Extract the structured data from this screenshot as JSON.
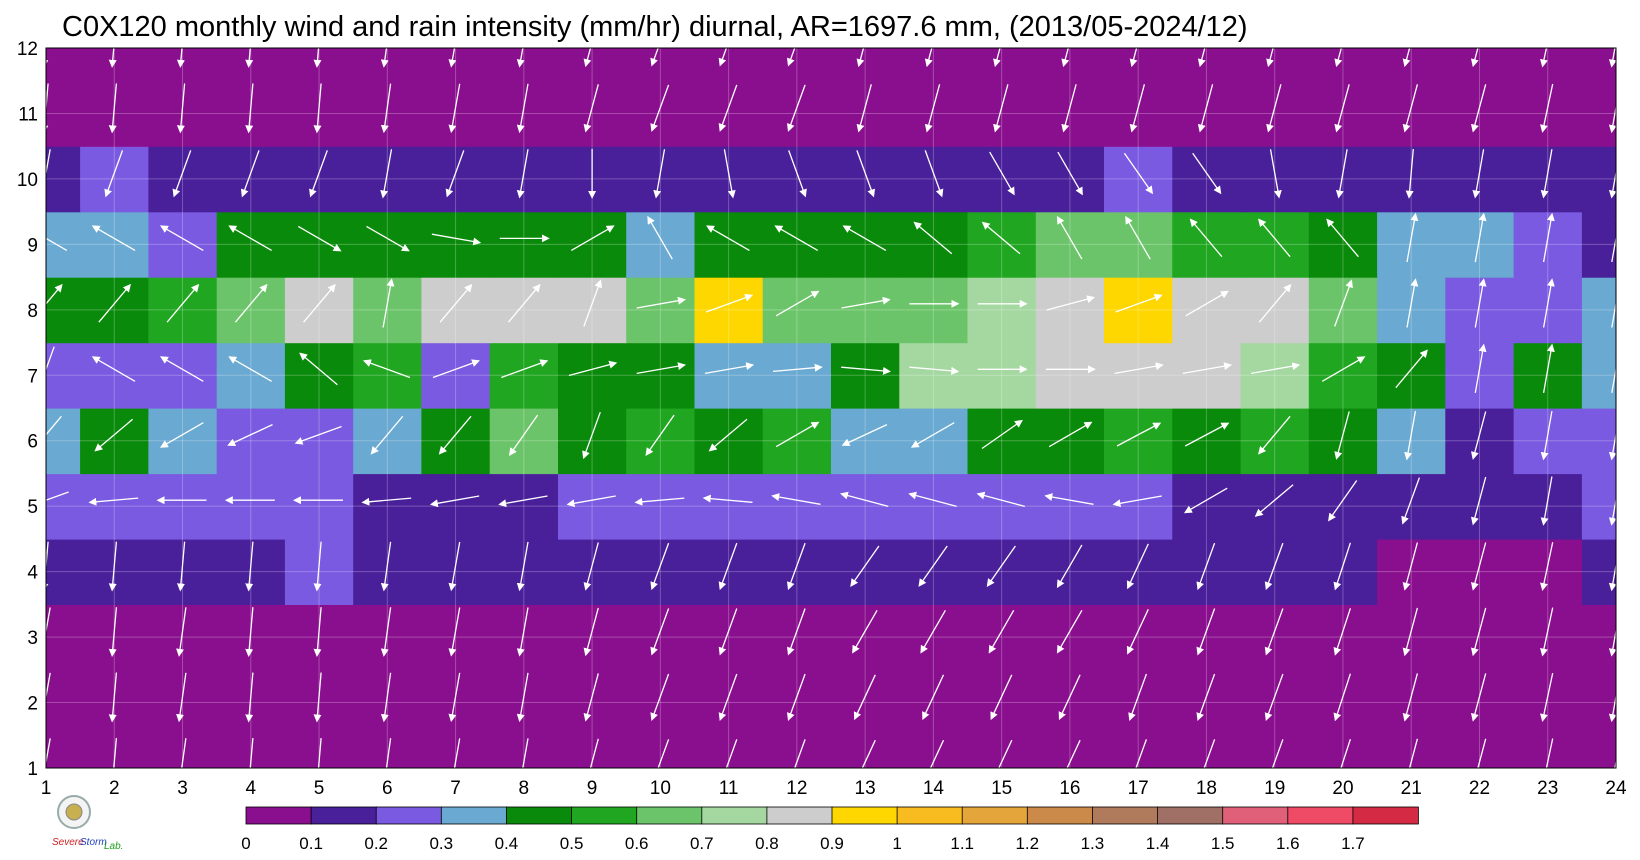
{
  "chart_data": {
    "type": "heatmap",
    "title": "C0X120 monthly wind and rain intensity (mm/hr) diurnal, AR=1697.6 mm, (2013/05-2024/12)",
    "xlabel": "",
    "ylabel": "",
    "x_ticks": [
      1,
      2,
      3,
      4,
      5,
      6,
      7,
      8,
      9,
      10,
      11,
      12,
      13,
      14,
      15,
      16,
      17,
      18,
      19,
      20,
      21,
      22,
      23,
      24
    ],
    "y_ticks": [
      1,
      2,
      3,
      4,
      5,
      6,
      7,
      8,
      9,
      10,
      11,
      12
    ],
    "xlim": [
      1,
      24
    ],
    "ylim": [
      1,
      12
    ],
    "grid": true,
    "colorbar": {
      "position": "bottom",
      "levels": [
        0,
        0.1,
        0.2,
        0.3,
        0.4,
        0.5,
        0.6,
        0.7,
        0.8,
        0.9,
        1,
        1.1,
        1.2,
        1.3,
        1.4,
        1.5,
        1.6,
        1.7
      ],
      "tick_labels": [
        "0",
        "0.1",
        "0.2",
        "0.3",
        "0.4",
        "0.5",
        "0.6",
        "0.7",
        "0.8",
        "0.9",
        "1",
        "1.1",
        "1.2",
        "1.3",
        "1.4",
        "1.5",
        "1.6",
        "1.7"
      ],
      "colors": [
        "#8a0f8e",
        "#4a1f9a",
        "#7a5ae0",
        "#6aa9d2",
        "#0a8a0a",
        "#20a620",
        "#6cc46a",
        "#a4d8a0",
        "#cdcdcd",
        "#ffd700",
        "#f8bb20",
        "#e4a63a",
        "#cc8a4a",
        "#b07a5c",
        "#a06f66",
        "#e0607a",
        "#f04b66",
        "#d42a44"
      ]
    },
    "rain_intensity": [
      [
        0.05,
        0.05,
        0.05,
        0.05,
        0.05,
        0.05,
        0.05,
        0.05,
        0.05,
        0.05,
        0.05,
        0.05,
        0.05,
        0.05,
        0.05,
        0.05,
        0.05,
        0.05,
        0.05,
        0.05,
        0.05,
        0.05,
        0.05,
        0.05
      ],
      [
        0.05,
        0.05,
        0.05,
        0.05,
        0.05,
        0.05,
        0.05,
        0.05,
        0.05,
        0.05,
        0.05,
        0.05,
        0.05,
        0.05,
        0.05,
        0.05,
        0.05,
        0.05,
        0.05,
        0.05,
        0.05,
        0.05,
        0.05,
        0.05
      ],
      [
        0.08,
        0.09,
        0.06,
        0.08,
        0.09,
        0.07,
        0.08,
        0.06,
        0.06,
        0.06,
        0.05,
        0.06,
        0.06,
        0.08,
        0.06,
        0.06,
        0.07,
        0.09,
        0.09,
        0.06,
        0.05,
        0.05,
        0.05,
        0.05
      ],
      [
        0.11,
        0.12,
        0.15,
        0.15,
        0.22,
        0.14,
        0.13,
        0.11,
        0.11,
        0.11,
        0.1,
        0.11,
        0.11,
        0.13,
        0.11,
        0.11,
        0.11,
        0.12,
        0.12,
        0.1,
        0.08,
        0.08,
        0.08,
        0.11
      ],
      [
        0.22,
        0.22,
        0.25,
        0.22,
        0.24,
        0.19,
        0.18,
        0.19,
        0.24,
        0.26,
        0.22,
        0.27,
        0.22,
        0.29,
        0.28,
        0.26,
        0.22,
        0.19,
        0.17,
        0.16,
        0.16,
        0.13,
        0.16,
        0.2
      ],
      [
        0.35,
        0.45,
        0.34,
        0.25,
        0.25,
        0.34,
        0.46,
        0.65,
        0.48,
        0.55,
        0.45,
        0.55,
        0.35,
        0.36,
        0.44,
        0.48,
        0.5,
        0.48,
        0.5,
        0.41,
        0.32,
        0.15,
        0.22,
        0.22
      ],
      [
        0.25,
        0.25,
        0.25,
        0.3,
        0.45,
        0.55,
        0.25,
        0.5,
        0.45,
        0.44,
        0.3,
        0.35,
        0.48,
        0.7,
        0.79,
        0.82,
        0.82,
        0.8,
        0.7,
        0.55,
        0.42,
        0.25,
        0.45,
        0.38
      ],
      [
        0.48,
        0.41,
        0.5,
        0.62,
        0.82,
        0.63,
        0.81,
        0.83,
        0.82,
        0.62,
        0.92,
        0.65,
        0.66,
        0.67,
        0.74,
        0.85,
        0.93,
        0.88,
        0.82,
        0.62,
        0.3,
        0.2,
        0.22,
        0.32
      ],
      [
        0.38,
        0.3,
        0.27,
        0.42,
        0.45,
        0.44,
        0.44,
        0.44,
        0.4,
        0.38,
        0.4,
        0.42,
        0.42,
        0.45,
        0.56,
        0.6,
        0.62,
        0.58,
        0.54,
        0.4,
        0.3,
        0.3,
        0.22,
        0.18
      ],
      [
        0.12,
        0.2,
        0.13,
        0.15,
        0.16,
        0.16,
        0.15,
        0.13,
        0.11,
        0.11,
        0.13,
        0.18,
        0.18,
        0.18,
        0.19,
        0.19,
        0.2,
        0.17,
        0.16,
        0.15,
        0.15,
        0.15,
        0.15,
        0.12
      ],
      [
        0.05,
        0.05,
        0.05,
        0.05,
        0.05,
        0.05,
        0.05,
        0.05,
        0.05,
        0.05,
        0.05,
        0.05,
        0.05,
        0.05,
        0.05,
        0.05,
        0.05,
        0.05,
        0.05,
        0.05,
        0.05,
        0.05,
        0.05,
        0.05
      ],
      [
        0.05,
        0.05,
        0.05,
        0.05,
        0.05,
        0.05,
        0.05,
        0.05,
        0.05,
        0.05,
        0.05,
        0.05,
        0.05,
        0.05,
        0.05,
        0.05,
        0.05,
        0.05,
        0.05,
        0.05,
        0.05,
        0.05,
        0.05,
        0.05
      ]
    ],
    "wind_vectors_deg_from_north": [
      [
        190,
        185,
        188,
        185,
        185,
        188,
        190,
        190,
        195,
        200,
        200,
        200,
        205,
        205,
        205,
        205,
        200,
        200,
        200,
        198,
        195,
        195,
        192,
        190
      ],
      [
        190,
        185,
        188,
        185,
        185,
        188,
        190,
        190,
        195,
        200,
        200,
        200,
        205,
        205,
        205,
        205,
        200,
        200,
        200,
        198,
        195,
        195,
        192,
        190
      ],
      [
        190,
        185,
        188,
        185,
        185,
        188,
        190,
        190,
        195,
        200,
        200,
        200,
        210,
        210,
        210,
        210,
        205,
        200,
        200,
        198,
        195,
        195,
        192,
        190
      ],
      [
        185,
        185,
        185,
        185,
        185,
        188,
        190,
        190,
        195,
        200,
        200,
        200,
        215,
        215,
        215,
        210,
        205,
        200,
        200,
        198,
        195,
        195,
        192,
        190
      ],
      [
        250,
        265,
        270,
        270,
        270,
        265,
        260,
        260,
        260,
        265,
        275,
        280,
        285,
        285,
        285,
        280,
        260,
        240,
        230,
        215,
        200,
        195,
        190,
        190
      ],
      [
        220,
        230,
        240,
        245,
        250,
        220,
        220,
        215,
        200,
        215,
        230,
        60,
        245,
        240,
        55,
        60,
        62,
        62,
        220,
        195,
        190,
        195,
        190,
        190
      ],
      [
        200,
        300,
        300,
        300,
        310,
        290,
        70,
        70,
        75,
        80,
        80,
        85,
        95,
        95,
        90,
        90,
        80,
        80,
        80,
        60,
        40,
        10,
        10,
        10
      ],
      [
        40,
        40,
        40,
        40,
        40,
        10,
        40,
        40,
        20,
        80,
        70,
        60,
        80,
        90,
        90,
        75,
        70,
        60,
        40,
        20,
        10,
        10,
        10,
        10
      ],
      [
        300,
        300,
        300,
        300,
        120,
        120,
        100,
        90,
        60,
        330,
        300,
        300,
        300,
        310,
        310,
        330,
        330,
        320,
        320,
        320,
        10,
        10,
        10,
        10
      ],
      [
        190,
        200,
        200,
        200,
        200,
        190,
        200,
        190,
        180,
        190,
        170,
        160,
        160,
        160,
        150,
        150,
        145,
        145,
        170,
        190,
        185,
        190,
        190,
        190
      ],
      [
        185,
        185,
        185,
        185,
        185,
        188,
        190,
        190,
        195,
        200,
        200,
        200,
        195,
        195,
        195,
        195,
        195,
        195,
        195,
        195,
        195,
        195,
        192,
        190
      ],
      [
        185,
        185,
        185,
        185,
        185,
        188,
        190,
        190,
        195,
        200,
        200,
        200,
        195,
        195,
        195,
        195,
        195,
        195,
        195,
        195,
        195,
        195,
        192,
        190
      ]
    ]
  },
  "logo": {
    "text_line1": "Severe",
    "text_line2": "Storm",
    "text_line3": "Lab."
  }
}
